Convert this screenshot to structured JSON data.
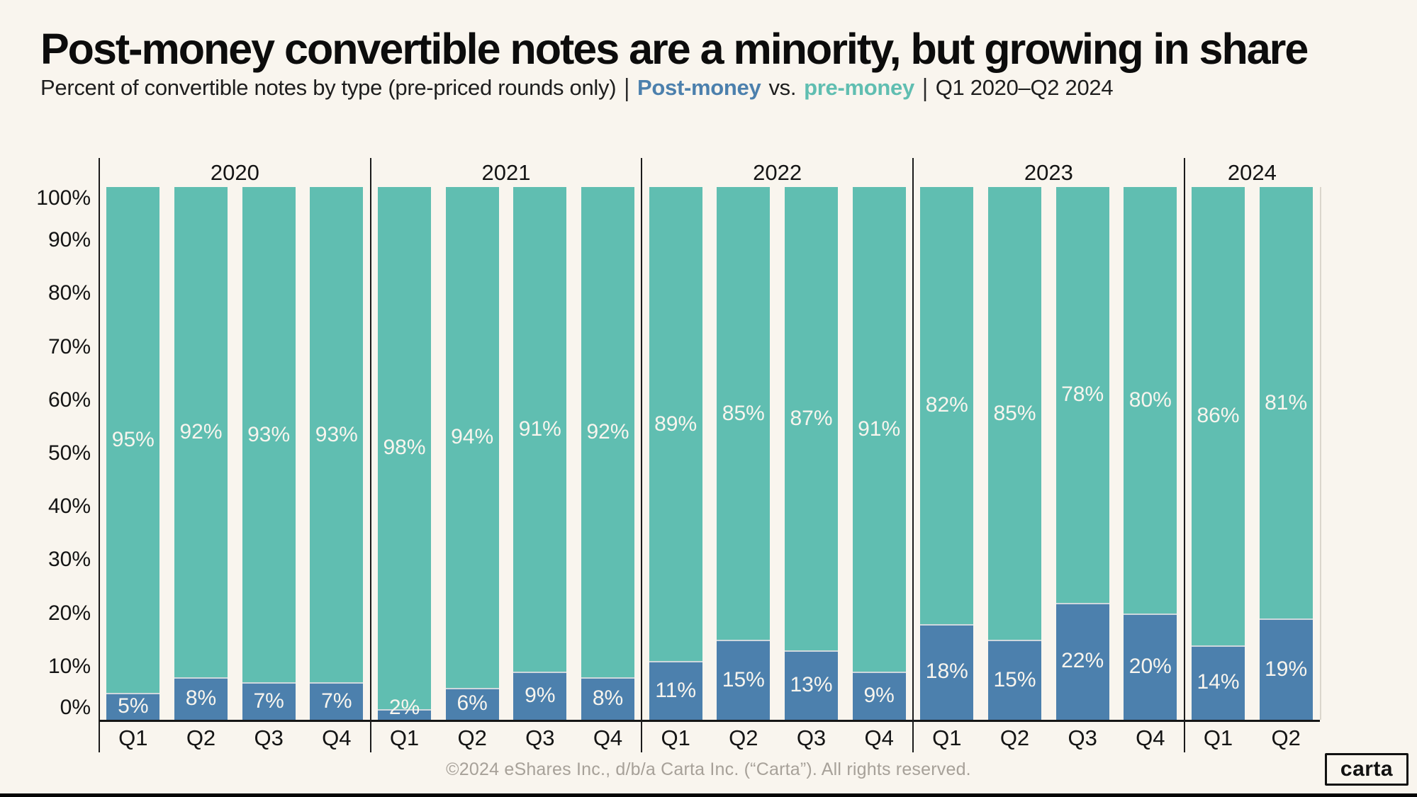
{
  "page": {
    "background": "#F9F5EE"
  },
  "header": {
    "title": "Post-money convertible notes are a minority, but growing in share",
    "subtitle": {
      "lead": "Percent of convertible notes by type (pre-priced rounds only)",
      "sep": "|",
      "post_label": "Post-money",
      "vs": "vs.",
      "pre_label": "pre-money",
      "range": "Q1 2020–Q2 2024"
    }
  },
  "chart_data": {
    "type": "bar",
    "stacked": true,
    "title": "Post-money convertible notes are a minority, but growing in share",
    "subtitle": "Percent of convertible notes by type (pre-priced rounds only) | Post-money vs. pre-money | Q1 2020–Q2 2024",
    "ylabel": "",
    "ylim": [
      0,
      100
    ],
    "y_ticks": [
      "100%",
      "90%",
      "80%",
      "70%",
      "60%",
      "50%",
      "40%",
      "30%",
      "20%",
      "10%",
      "0%"
    ],
    "grid": false,
    "legend_position": "in-subtitle",
    "series_meta": [
      {
        "name": "Post-money",
        "color": "#4C80AD",
        "label_color": "#F8F5EE"
      },
      {
        "name": "pre-money",
        "color": "#60BEB1",
        "label_color": "#F8F5EE"
      }
    ],
    "groups": [
      {
        "year": "2020",
        "quarters": [
          "Q1",
          "Q2",
          "Q3",
          "Q4"
        ],
        "post_money": [
          5,
          8,
          7,
          7
        ],
        "pre_money": [
          95,
          92,
          93,
          93
        ]
      },
      {
        "year": "2021",
        "quarters": [
          "Q1",
          "Q2",
          "Q3",
          "Q4"
        ],
        "post_money": [
          2,
          6,
          9,
          8
        ],
        "pre_money": [
          98,
          94,
          91,
          92
        ]
      },
      {
        "year": "2022",
        "quarters": [
          "Q1",
          "Q2",
          "Q3",
          "Q4"
        ],
        "post_money": [
          11,
          15,
          13,
          9
        ],
        "pre_money": [
          89,
          85,
          87,
          91
        ]
      },
      {
        "year": "2023",
        "quarters": [
          "Q1",
          "Q2",
          "Q3",
          "Q4"
        ],
        "post_money": [
          18,
          15,
          22,
          20
        ],
        "pre_money": [
          82,
          85,
          78,
          80
        ]
      },
      {
        "year": "2024",
        "quarters": [
          "Q1",
          "Q2"
        ],
        "post_money": [
          14,
          19
        ],
        "pre_money": [
          86,
          81
        ]
      }
    ]
  },
  "footer": {
    "copyright": "©2024 eShares Inc., d/b/a Carta Inc. (“Carta”). All rights reserved.",
    "logo_text": "carta"
  }
}
